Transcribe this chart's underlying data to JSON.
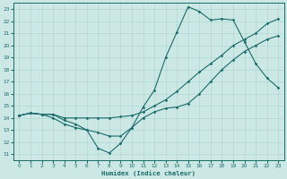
{
  "xlabel": "Humidex (Indice chaleur)",
  "xlim": [
    -0.5,
    23.5
  ],
  "ylim": [
    10.5,
    23.5
  ],
  "xticks": [
    0,
    1,
    2,
    3,
    4,
    5,
    6,
    7,
    8,
    9,
    10,
    11,
    12,
    13,
    14,
    15,
    16,
    17,
    18,
    19,
    20,
    21,
    22,
    23
  ],
  "yticks": [
    11,
    12,
    13,
    14,
    15,
    16,
    17,
    18,
    19,
    20,
    21,
    22,
    23
  ],
  "bg_color": "#cce8e5",
  "line_color": "#1a6b6b",
  "grid_color": "#aad4d0",
  "s1_x": [
    0,
    1,
    2,
    3,
    4,
    5,
    6,
    7,
    8,
    9,
    10,
    11,
    12,
    13,
    14,
    15,
    16,
    17,
    18,
    19,
    20,
    21,
    22,
    23
  ],
  "s1_y": [
    14.2,
    14.4,
    14.3,
    14.3,
    13.8,
    13.5,
    13.0,
    11.5,
    11.1,
    11.9,
    13.2,
    14.9,
    16.3,
    19.0,
    21.1,
    23.2,
    22.8,
    22.1,
    22.2,
    22.1,
    20.3,
    18.5,
    17.3,
    16.5
  ],
  "s2_x": [
    0,
    1,
    2,
    3,
    4,
    5,
    6,
    7,
    8,
    9,
    10,
    11,
    12,
    13,
    14,
    15,
    16,
    17,
    18,
    19,
    20,
    21,
    22,
    23
  ],
  "s2_y": [
    14.2,
    14.4,
    14.3,
    14.3,
    14.0,
    14.0,
    14.0,
    14.0,
    14.0,
    14.1,
    14.2,
    14.5,
    15.0,
    15.5,
    16.2,
    17.0,
    17.8,
    18.5,
    19.2,
    20.0,
    20.5,
    21.0,
    21.8,
    22.2
  ],
  "s3_x": [
    0,
    1,
    2,
    3,
    4,
    5,
    6,
    7,
    8,
    9,
    10,
    11,
    12,
    13,
    14,
    15,
    16,
    17,
    18,
    19,
    20,
    21,
    22,
    23
  ],
  "s3_y": [
    14.2,
    14.4,
    14.3,
    14.0,
    13.5,
    13.2,
    13.0,
    12.8,
    12.5,
    12.5,
    13.2,
    14.0,
    14.5,
    14.8,
    14.9,
    15.2,
    16.0,
    17.0,
    18.0,
    18.8,
    19.5,
    20.0,
    20.5,
    20.8
  ]
}
